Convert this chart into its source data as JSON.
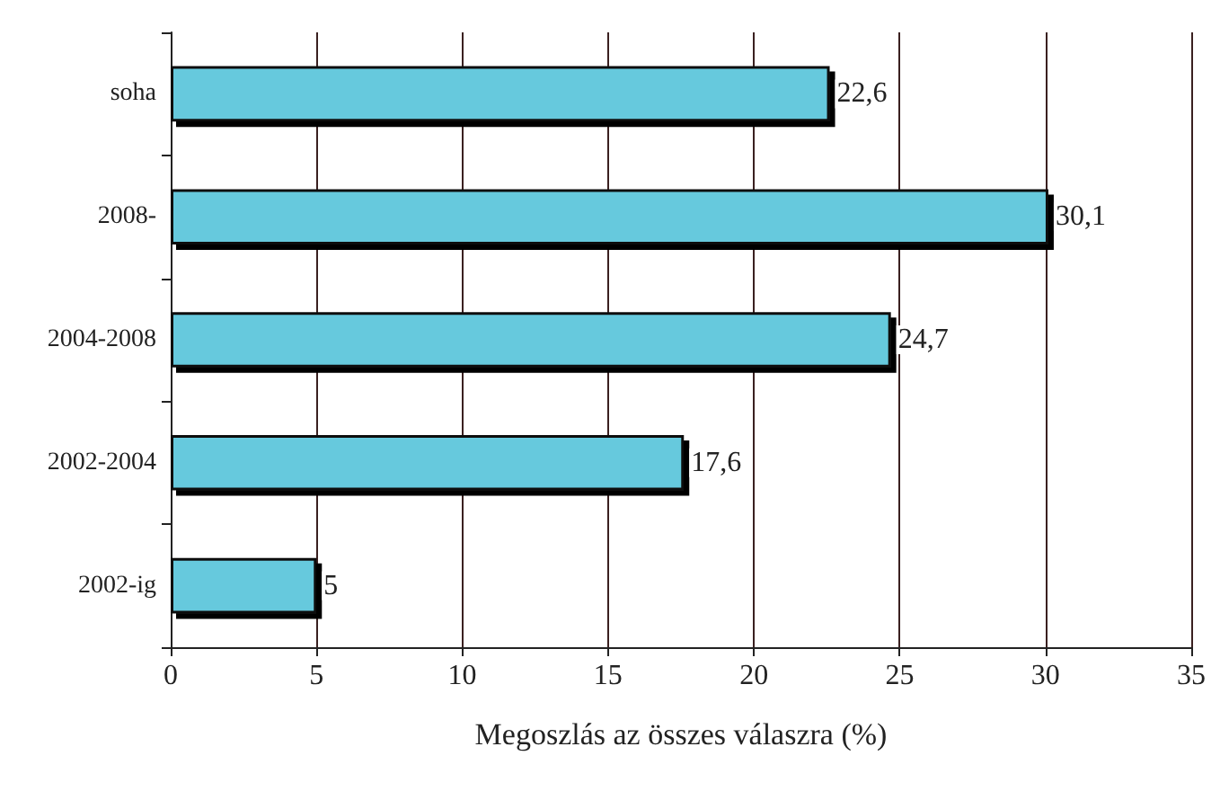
{
  "chart_data": {
    "type": "bar",
    "orientation": "horizontal",
    "xlabel": "Megoszlás az összes válaszra (%)",
    "categories": [
      "soha",
      "2008-",
      "2004-2008",
      "2002-2004",
      "2002-ig"
    ],
    "values": [
      22.6,
      30.1,
      24.7,
      17.6,
      5
    ],
    "value_labels": [
      "22,6",
      "30,1",
      "24,7",
      "17,6",
      "5"
    ],
    "color": "#66c9dd",
    "xlim": [
      0,
      35
    ],
    "xticks": [
      0,
      5,
      10,
      15,
      20,
      25,
      30,
      35
    ],
    "grid": "x"
  }
}
